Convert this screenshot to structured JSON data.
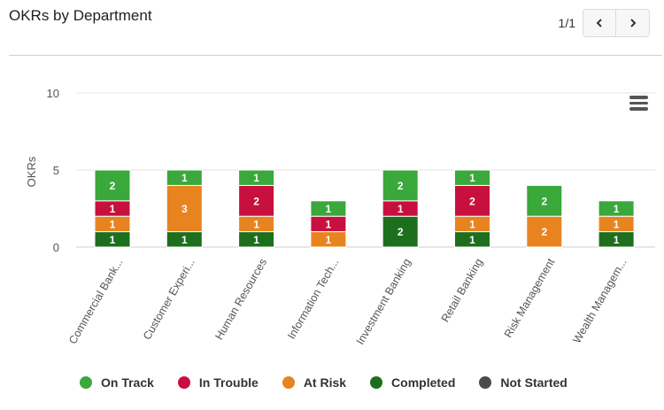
{
  "header": {
    "title": "OKRs by Department",
    "page_count": "1/1"
  },
  "icons": {
    "prev": "chevron-left-icon",
    "next": "chevron-right-icon",
    "menu": "hamburger-menu-icon"
  },
  "colors": {
    "on_track": "#3aa83a",
    "in_trouble": "#c8103e",
    "at_risk": "#e88420",
    "completed": "#1d6e1d",
    "not_started": "#4a4a4a"
  },
  "chart_data": {
    "type": "bar",
    "stacked": true,
    "title": "",
    "xlabel": "",
    "ylabel": "OKRs",
    "ylim": [
      0,
      10
    ],
    "yticks": [
      "0",
      "5",
      "10"
    ],
    "categories": [
      "Commercial Bank...",
      "Customer Experi...",
      "Human Resources",
      "Information Tech...",
      "Investment Banking",
      "Retail Banking",
      "Risk Management",
      "Wealth Managem..."
    ],
    "series": [
      {
        "name": "On Track",
        "color_key": "on_track",
        "values": [
          2,
          1,
          1,
          1,
          2,
          1,
          2,
          1
        ]
      },
      {
        "name": "In Trouble",
        "color_key": "in_trouble",
        "values": [
          1,
          0,
          2,
          1,
          1,
          2,
          0,
          0
        ]
      },
      {
        "name": "At Risk",
        "color_key": "at_risk",
        "values": [
          1,
          3,
          1,
          1,
          0,
          1,
          2,
          1
        ]
      },
      {
        "name": "Completed",
        "color_key": "completed",
        "values": [
          1,
          1,
          1,
          0,
          2,
          1,
          0,
          1
        ]
      },
      {
        "name": "Not Started",
        "color_key": "not_started",
        "values": [
          0,
          0,
          0,
          0,
          0,
          0,
          0,
          0
        ]
      }
    ],
    "grid": true,
    "legend_position": "bottom"
  }
}
